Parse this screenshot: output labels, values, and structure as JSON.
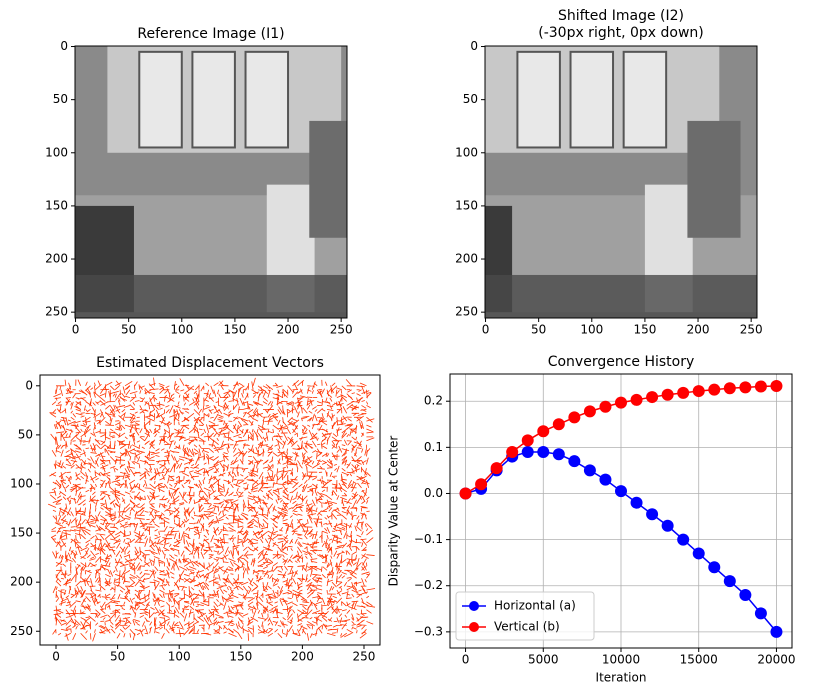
{
  "chart_data": [
    {
      "type": "image",
      "title": "Reference Image (I1)",
      "xlim": [
        -0.5,
        255.5
      ],
      "ylim": [
        255.5,
        -0.5
      ],
      "xticks": [
        0,
        50,
        100,
        150,
        200,
        250
      ],
      "yticks": [
        0,
        50,
        100,
        150,
        200,
        250
      ],
      "colormap": "gray"
    },
    {
      "type": "image",
      "title": "Shifted Image (I2)",
      "subtitle": "(-30px right, 0px down)",
      "xlim": [
        -0.5,
        255.5
      ],
      "ylim": [
        255.5,
        -0.5
      ],
      "xticks": [
        0,
        50,
        100,
        150,
        200,
        250
      ],
      "yticks": [
        0,
        50,
        100,
        150,
        200,
        250
      ],
      "colormap": "gray"
    },
    {
      "type": "quiver",
      "title": "Estimated Displacement Vectors",
      "xlim": [
        -13,
        263
      ],
      "ylim": [
        264,
        -11
      ],
      "xticks": [
        0,
        50,
        100,
        150,
        200,
        250
      ],
      "yticks": [
        0,
        50,
        100,
        150,
        200,
        250
      ],
      "color": "#ff3300"
    },
    {
      "type": "line",
      "title": "Convergence History",
      "xlabel": "Iteration",
      "ylabel": "Disparity Value at Center",
      "xlim": [
        -1000,
        21000
      ],
      "ylim": [
        -0.335,
        0.259
      ],
      "xticks": [
        0,
        5000,
        10000,
        15000,
        20000
      ],
      "yticks": [
        {
          "value": -0.3,
          "label": "−0.3"
        },
        {
          "value": -0.2,
          "label": "−0.2"
        },
        {
          "value": -0.1,
          "label": "−0.1"
        },
        {
          "value": 0,
          "label": "0.0"
        },
        0.1,
        0.2
      ],
      "grid": true,
      "legend": "lower left",
      "x": [
        0,
        1000,
        2000,
        3000,
        4000,
        5000,
        6000,
        7000,
        8000,
        9000,
        10000,
        11000,
        12000,
        13000,
        14000,
        15000,
        16000,
        17000,
        18000,
        19000,
        20000
      ],
      "series": [
        {
          "name": "Horizontal (a)",
          "color": "#0000ff",
          "values": [
            0,
            0.01,
            0.05,
            0.08,
            0.09,
            0.09,
            0.085,
            0.07,
            0.05,
            0.03,
            0.005,
            -0.02,
            -0.045,
            -0.07,
            -0.1,
            -0.13,
            -0.16,
            -0.19,
            -0.22,
            -0.26,
            -0.3
          ]
        },
        {
          "name": "Vertical (b)",
          "color": "#ff0000",
          "values": [
            0,
            0.02,
            0.055,
            0.09,
            0.115,
            0.135,
            0.15,
            0.165,
            0.178,
            0.188,
            0.197,
            0.203,
            0.209,
            0.214,
            0.218,
            0.222,
            0.225,
            0.228,
            0.23,
            0.232,
            0.233
          ]
        }
      ]
    }
  ]
}
